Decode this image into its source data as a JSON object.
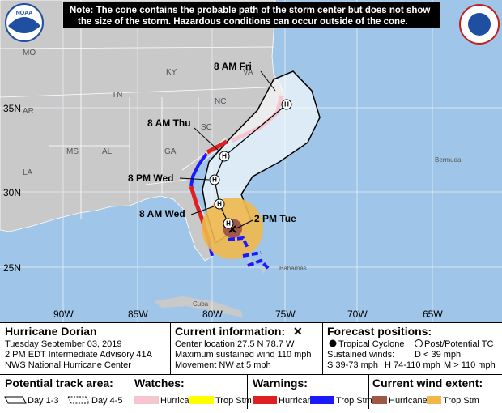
{
  "note": [
    "Note: The cone contains the probable path of the storm center but does not show",
    "the size of the storm. Hazardous conditions can occur outside of the cone."
  ],
  "logos": {
    "noaa": "NOAA"
  },
  "map": {
    "regions": [
      "MO",
      "KY",
      "VA",
      "TN",
      "NC",
      "AR",
      "SC",
      "MS",
      "AL",
      "GA",
      "LA",
      "Bermuda",
      "Bahamas",
      "Cuba"
    ],
    "latitudes": [
      "35N",
      "30N",
      "25N"
    ],
    "longitudes": [
      "90W",
      "85W",
      "80W",
      "75W",
      "70W",
      "65W"
    ],
    "forecast_points": [
      {
        "label": "8 AM Fri",
        "marker": "H"
      },
      {
        "label": "8 AM Thu",
        "marker": "H"
      },
      {
        "label": "8 PM Wed",
        "marker": "H"
      },
      {
        "label": "8 AM Wed",
        "marker": "H"
      },
      {
        "label": "2 PM Tue",
        "marker": "H"
      }
    ]
  },
  "storm": {
    "name": "Hurricane Dorian",
    "date": "Tuesday September 03, 2019",
    "advisory": "2 PM EDT Intermediate Advisory 41A",
    "center": "NWS National Hurricane Center"
  },
  "current_info": {
    "title": "Current information:",
    "symbol": "✕",
    "lines": [
      "Center location 27.5 N 78.7 W",
      "Maximum sustained wind 110 mph",
      "Movement NW at 5 mph"
    ]
  },
  "forecast_positions": {
    "title": "Forecast positions:",
    "tropical": "Tropical Cyclone",
    "post": "Post/Potential TC",
    "sustained": "Sustained winds:",
    "d": "D < 39 mph",
    "s": "S 39-73 mph",
    "h": "H 74-110 mph",
    "m": "M > 110 mph"
  },
  "potential_track": {
    "title": "Potential track area:",
    "day13": "Day 1-3",
    "day45": "Day 4-5"
  },
  "watches": {
    "title": "Watches:",
    "hurricane": "Hurricane",
    "trop": "Trop Stm"
  },
  "warnings": {
    "title": "Warnings:",
    "hurricane": "Hurricane",
    "trop": "Trop Stm"
  },
  "wind_extent": {
    "title": "Current wind extent:",
    "hurricane": "Hurricane",
    "trop": "Trop Stm"
  }
}
